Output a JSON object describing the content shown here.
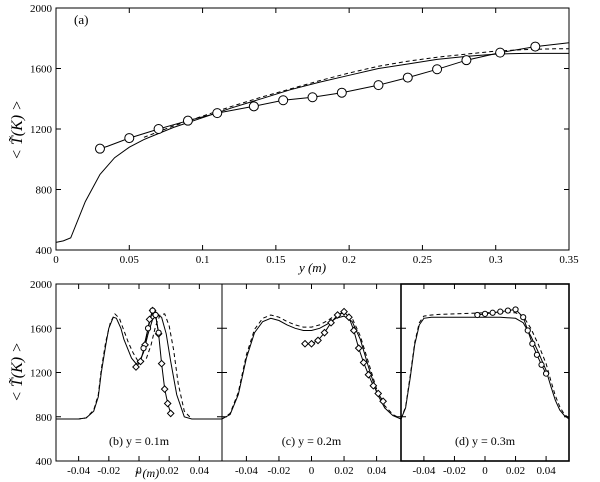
{
  "chart_data": [
    {
      "id": "a",
      "type": "line",
      "panel_label": "(a)",
      "xlabel": "y (m)",
      "ylabel": "< T̃(K) >",
      "xlim": [
        0,
        0.35
      ],
      "ylim": [
        400,
        2000
      ],
      "xticks": [
        0,
        0.05,
        0.1,
        0.15,
        0.2,
        0.25,
        0.3,
        0.35
      ],
      "xtick_labels": [
        "0",
        "0.05",
        "0.1",
        "0.15",
        "0.2",
        "0.25",
        "0.3",
        "0.35"
      ],
      "yticks": [
        400,
        800,
        1200,
        1600,
        2000
      ],
      "ytick_labels": [
        "400",
        "800",
        "1200",
        "1600",
        "2000"
      ],
      "series": [
        {
          "style": "solid-circles",
          "x": [
            0.03,
            0.035,
            0.05,
            0.07,
            0.09,
            0.11,
            0.135,
            0.155,
            0.175,
            0.195,
            0.22,
            0.24,
            0.26,
            0.28,
            0.303,
            0.327,
            0.35
          ],
          "y": [
            1070,
            1085,
            1140,
            1200,
            1255,
            1305,
            1350,
            1390,
            1410,
            1440,
            1490,
            1540,
            1595,
            1655,
            1705,
            1745,
            1770
          ],
          "marker_x": [
            0.03,
            0.05,
            0.07,
            0.09,
            0.11,
            0.135,
            0.155,
            0.175,
            0.195,
            0.22,
            0.24,
            0.26,
            0.28,
            0.303,
            0.327
          ],
          "marker_y": [
            1070,
            1140,
            1200,
            1255,
            1305,
            1350,
            1390,
            1410,
            1440,
            1490,
            1540,
            1595,
            1655,
            1705,
            1745
          ]
        },
        {
          "style": "solid",
          "x": [
            0,
            0.005,
            0.01,
            0.02,
            0.03,
            0.04,
            0.05,
            0.06,
            0.07,
            0.08,
            0.1,
            0.12,
            0.14,
            0.16,
            0.18,
            0.2,
            0.22,
            0.24,
            0.26,
            0.28,
            0.3,
            0.32,
            0.34,
            0.35
          ],
          "y": [
            450,
            460,
            480,
            720,
            900,
            1010,
            1080,
            1130,
            1170,
            1210,
            1275,
            1340,
            1400,
            1460,
            1510,
            1555,
            1600,
            1630,
            1660,
            1680,
            1695,
            1700,
            1700,
            1700
          ]
        },
        {
          "style": "dashed",
          "x": [
            0.06,
            0.08,
            0.1,
            0.12,
            0.14,
            0.16,
            0.18,
            0.2,
            0.22,
            0.24,
            0.26,
            0.28,
            0.3,
            0.32,
            0.34,
            0.35
          ],
          "y": [
            1145,
            1220,
            1285,
            1350,
            1410,
            1465,
            1520,
            1570,
            1615,
            1648,
            1675,
            1695,
            1715,
            1725,
            1730,
            1730
          ]
        }
      ]
    },
    {
      "id": "b",
      "type": "line",
      "panel_label": "(b) y = 0.1m",
      "xlim": [
        -0.055,
        0.055
      ],
      "ylim": [
        400,
        2000
      ],
      "xticks": [
        -0.04,
        -0.02,
        0,
        0.02,
        0.04
      ],
      "xtick_labels": [
        "-0.04",
        "-0.02",
        "0",
        "0.02",
        "0.04"
      ],
      "yticks": [
        400,
        800,
        1200,
        1600,
        2000
      ],
      "ytick_labels": [
        "400",
        "800",
        "1200",
        "1600",
        "2000"
      ],
      "series": [
        {
          "style": "solid",
          "x": [
            -0.055,
            -0.04,
            -0.035,
            -0.03,
            -0.027,
            -0.025,
            -0.022,
            -0.02,
            -0.017,
            -0.015,
            -0.012,
            -0.01,
            -0.007,
            -0.005,
            -0.002,
            0,
            0.003,
            0.006,
            0.009,
            0.012,
            0.015,
            0.018,
            0.021,
            0.025,
            0.03,
            0.035,
            0.04,
            0.055
          ],
          "y": [
            780,
            780,
            790,
            850,
            980,
            1200,
            1450,
            1600,
            1700,
            1690,
            1600,
            1500,
            1400,
            1330,
            1280,
            1290,
            1380,
            1550,
            1680,
            1720,
            1700,
            1550,
            1300,
            1000,
            800,
            780,
            780,
            780
          ]
        },
        {
          "style": "dashed",
          "x": [
            -0.055,
            -0.04,
            -0.035,
            -0.03,
            -0.027,
            -0.025,
            -0.022,
            -0.019,
            -0.016,
            -0.013,
            -0.01,
            -0.007,
            -0.004,
            -0.001,
            0.002,
            0.005,
            0.008,
            0.011,
            0.014,
            0.017,
            0.02,
            0.023,
            0.026,
            0.03,
            0.035,
            0.04,
            0.055
          ],
          "y": [
            780,
            780,
            790,
            860,
            1000,
            1230,
            1480,
            1650,
            1730,
            1690,
            1580,
            1470,
            1380,
            1310,
            1290,
            1330,
            1450,
            1620,
            1720,
            1730,
            1620,
            1400,
            1100,
            850,
            780,
            780,
            780
          ]
        },
        {
          "style": "solid-diamonds",
          "x": [
            -0.002,
            0.001,
            0.004,
            0.007,
            0.009,
            0.011,
            0.013,
            0.015,
            0.017,
            0.019,
            0.021
          ],
          "y": [
            1250,
            1300,
            1450,
            1680,
            1760,
            1720,
            1550,
            1280,
            1050,
            920,
            830
          ]
        },
        {
          "style": "solid-circles",
          "x": [
            0.003,
            0.006,
            0.009,
            0.011,
            0.013
          ],
          "y": [
            1420,
            1600,
            1760,
            1720,
            1560
          ]
        }
      ]
    },
    {
      "id": "c",
      "type": "line",
      "panel_label": "(c) y = 0.2m",
      "xlim": [
        -0.055,
        0.055
      ],
      "ylim": [
        400,
        2000
      ],
      "xticks": [
        -0.04,
        -0.02,
        0,
        0.02,
        0.04
      ],
      "xtick_labels": [
        "-0.04",
        "-0.02",
        "0",
        "0.02",
        "0.04"
      ],
      "yticks": [
        400,
        800,
        1200,
        1600,
        2000
      ],
      "series": [
        {
          "style": "solid",
          "x": [
            -0.055,
            -0.05,
            -0.045,
            -0.04,
            -0.035,
            -0.03,
            -0.025,
            -0.02,
            -0.015,
            -0.01,
            -0.005,
            0,
            0.005,
            0.01,
            0.015,
            0.02,
            0.025,
            0.03,
            0.035,
            0.04,
            0.045,
            0.05,
            0.055
          ],
          "y": [
            780,
            820,
            1000,
            1330,
            1560,
            1660,
            1690,
            1670,
            1630,
            1600,
            1580,
            1580,
            1600,
            1640,
            1690,
            1710,
            1660,
            1500,
            1250,
            1020,
            880,
            810,
            780
          ]
        },
        {
          "style": "dashed",
          "x": [
            -0.055,
            -0.05,
            -0.045,
            -0.04,
            -0.035,
            -0.03,
            -0.025,
            -0.02,
            -0.015,
            -0.01,
            -0.005,
            0,
            0.005,
            0.01,
            0.015,
            0.02,
            0.025,
            0.03,
            0.035,
            0.04,
            0.045,
            0.05,
            0.055
          ],
          "y": [
            780,
            830,
            1020,
            1360,
            1590,
            1690,
            1720,
            1700,
            1660,
            1630,
            1610,
            1610,
            1630,
            1670,
            1720,
            1740,
            1690,
            1530,
            1290,
            1050,
            900,
            820,
            780
          ]
        },
        {
          "style": "solid-diamonds",
          "x": [
            -0.004,
            0,
            0.004,
            0.008,
            0.012,
            0.016,
            0.02,
            0.023,
            0.026,
            0.029,
            0.032,
            0.035,
            0.038,
            0.041,
            0.044
          ],
          "y": [
            1460,
            1460,
            1490,
            1560,
            1650,
            1720,
            1750,
            1700,
            1580,
            1420,
            1290,
            1180,
            1080,
            1010,
            940
          ]
        }
      ]
    },
    {
      "id": "d",
      "type": "line",
      "panel_label": "(d) y = 0.3m",
      "xlim": [
        -0.055,
        0.055
      ],
      "ylim": [
        400,
        2000
      ],
      "xticks": [
        -0.04,
        -0.02,
        0,
        0.02,
        0.04
      ],
      "xtick_labels": [
        "-0.04",
        "-0.02",
        "0",
        "0.02",
        "0.04"
      ],
      "yticks": [
        400,
        800,
        1200,
        1600,
        2000
      ],
      "series": [
        {
          "style": "solid",
          "x": [
            -0.055,
            -0.052,
            -0.049,
            -0.046,
            -0.043,
            -0.04,
            -0.035,
            -0.03,
            -0.02,
            -0.01,
            0,
            0.01,
            0.02,
            0.025,
            0.03,
            0.035,
            0.04,
            0.043,
            0.046,
            0.049,
            0.052,
            0.055
          ],
          "y": [
            780,
            880,
            1150,
            1450,
            1630,
            1690,
            1700,
            1700,
            1700,
            1700,
            1700,
            1700,
            1690,
            1650,
            1530,
            1380,
            1220,
            1080,
            950,
            860,
            810,
            780
          ]
        },
        {
          "style": "dashed",
          "x": [
            -0.055,
            -0.052,
            -0.049,
            -0.046,
            -0.043,
            -0.04,
            -0.035,
            -0.03,
            -0.02,
            -0.01,
            0,
            0.01,
            0.02,
            0.025,
            0.03,
            0.035,
            0.04,
            0.043,
            0.046,
            0.049,
            0.052,
            0.055
          ],
          "y": [
            780,
            890,
            1170,
            1470,
            1650,
            1710,
            1720,
            1725,
            1730,
            1735,
            1740,
            1745,
            1740,
            1710,
            1600,
            1450,
            1280,
            1130,
            990,
            890,
            820,
            790
          ]
        },
        {
          "style": "solid-circles",
          "x": [
            -0.005,
            0,
            0.005,
            0.01,
            0.015,
            0.02,
            0.025,
            0.028,
            0.031,
            0.034,
            0.037,
            0.04
          ],
          "y": [
            1720,
            1730,
            1740,
            1750,
            1760,
            1770,
            1700,
            1580,
            1460,
            1360,
            1270,
            1190
          ]
        }
      ]
    }
  ],
  "shared": {
    "bottom_xlabel": "r (m)",
    "bottom_ylabel": "< T̃(K) >"
  }
}
